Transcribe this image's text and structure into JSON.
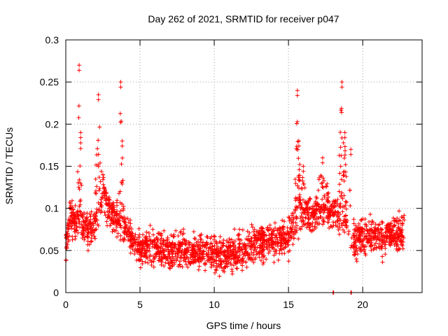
{
  "chart_data": {
    "type": "scatter",
    "title": "Day 262 of 2021, SRMTID for receiver p047",
    "xlabel": "GPS time / hours",
    "ylabel": "SRMTID / TECUs",
    "xlim": [
      0,
      24
    ],
    "ylim": [
      0,
      0.3
    ],
    "xticks": [
      0,
      5,
      10,
      15,
      20
    ],
    "xtick_labels": [
      "0",
      "5",
      "10",
      "15",
      "20"
    ],
    "yticks": [
      0,
      0.05,
      0.1,
      0.15,
      0.2,
      0.25,
      0.3
    ],
    "ytick_labels": [
      "0",
      "0.05",
      "0.1",
      "0.15",
      "0.2",
      "0.25",
      "0.3"
    ],
    "grid": true,
    "marker": "plus",
    "color": "#ff0000",
    "series": [
      {
        "name": "SRMTID",
        "anchors": [
          [
            0.0,
            0.05
          ],
          [
            0.3,
            0.095
          ],
          [
            0.6,
            0.085
          ],
          [
            1.0,
            0.08
          ],
          [
            1.5,
            0.075
          ],
          [
            2.0,
            0.08
          ],
          [
            2.5,
            0.11
          ],
          [
            3.0,
            0.095
          ],
          [
            3.5,
            0.085
          ],
          [
            4.0,
            0.075
          ],
          [
            4.5,
            0.06
          ],
          [
            5.0,
            0.055
          ],
          [
            6.0,
            0.055
          ],
          [
            7.0,
            0.05
          ],
          [
            8.0,
            0.05
          ],
          [
            9.0,
            0.05
          ],
          [
            10.0,
            0.045
          ],
          [
            11.0,
            0.045
          ],
          [
            12.0,
            0.05
          ],
          [
            13.0,
            0.06
          ],
          [
            14.0,
            0.06
          ],
          [
            15.0,
            0.065
          ],
          [
            15.5,
            0.085
          ],
          [
            16.0,
            0.09
          ],
          [
            17.0,
            0.095
          ],
          [
            18.0,
            0.095
          ],
          [
            18.5,
            0.09
          ],
          [
            19.0,
            0.07
          ],
          [
            19.5,
            0.06
          ],
          [
            20.0,
            0.07
          ],
          [
            21.0,
            0.065
          ],
          [
            22.0,
            0.07
          ],
          [
            22.8,
            0.07
          ]
        ],
        "spikes": [
          {
            "x": 0.9,
            "y": 0.27,
            "width": 0.15
          },
          {
            "x": 1.0,
            "y": 0.19,
            "width": 0.1
          },
          {
            "x": 2.2,
            "y": 0.235,
            "width": 0.2
          },
          {
            "x": 2.5,
            "y": 0.14,
            "width": 0.3
          },
          {
            "x": 3.7,
            "y": 0.25,
            "width": 0.12
          },
          {
            "x": 3.8,
            "y": 0.18,
            "width": 0.1
          },
          {
            "x": 15.6,
            "y": 0.24,
            "width": 0.15
          },
          {
            "x": 15.7,
            "y": 0.18,
            "width": 0.12
          },
          {
            "x": 16.0,
            "y": 0.15,
            "width": 0.3
          },
          {
            "x": 18.6,
            "y": 0.25,
            "width": 0.2
          },
          {
            "x": 18.8,
            "y": 0.19,
            "width": 0.15
          },
          {
            "x": 19.2,
            "y": 0.17,
            "width": 0.12
          },
          {
            "x": 17.3,
            "y": 0.16,
            "width": 0.4
          }
        ],
        "zero_marks": [
          18.0,
          19.2
        ],
        "gap": [
          18.9,
          19.3
        ],
        "point_count": 2400
      }
    ]
  }
}
